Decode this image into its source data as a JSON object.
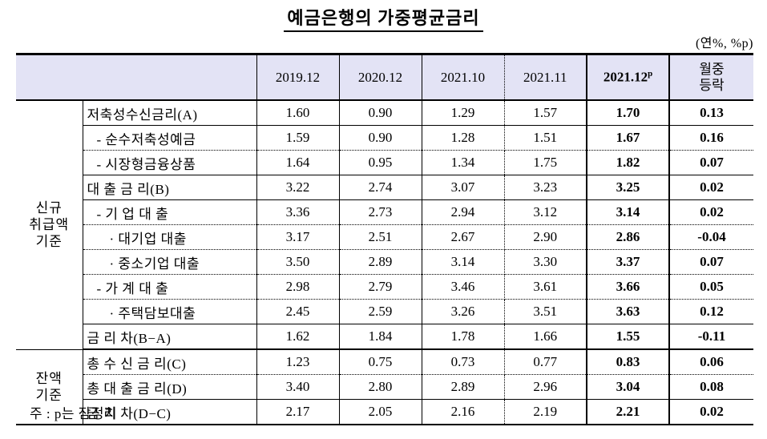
{
  "title": "예금은행의 가중평균금리",
  "unit_note": "(연%, %p)",
  "footnote": "주 : p는 잠정치",
  "colors": {
    "header_bg": "#e3e3f5",
    "border": "#000000",
    "text": "#000000"
  },
  "table": {
    "column_headers": [
      "2019.12",
      "2020.12",
      "2021.10",
      "2021.11"
    ],
    "highlight_header": {
      "label": "2021.12",
      "sup": "p"
    },
    "change_header": "월중\n등락",
    "groups": [
      {
        "label": "신규\n취급액\n기준"
      },
      {
        "label": "잔액\n기준"
      }
    ],
    "rows": [
      {
        "label": "저축성수신금리(A)",
        "values": [
          "1.60",
          "0.90",
          "1.29",
          "1.57",
          "1.70",
          "0.13"
        ]
      },
      {
        "label": "- 순수저축성예금",
        "values": [
          "1.59",
          "0.90",
          "1.28",
          "1.51",
          "1.67",
          "0.16"
        ]
      },
      {
        "label": "- 시장형금융상품",
        "values": [
          "1.64",
          "0.95",
          "1.34",
          "1.75",
          "1.82",
          "0.07"
        ]
      },
      {
        "label": "대 출 금 리(B)",
        "values": [
          "3.22",
          "2.74",
          "3.07",
          "3.23",
          "3.25",
          "0.02"
        ]
      },
      {
        "label": "- 기 업 대 출",
        "values": [
          "3.36",
          "2.73",
          "2.94",
          "3.12",
          "3.14",
          "0.02"
        ]
      },
      {
        "label": "· 대기업 대출",
        "values": [
          "3.17",
          "2.51",
          "2.67",
          "2.90",
          "2.86",
          "-0.04"
        ]
      },
      {
        "label": "· 중소기업 대출",
        "values": [
          "3.50",
          "2.89",
          "3.14",
          "3.30",
          "3.37",
          "0.07"
        ]
      },
      {
        "label": "- 가 계 대 출",
        "values": [
          "2.98",
          "2.79",
          "3.46",
          "3.61",
          "3.66",
          "0.05"
        ]
      },
      {
        "label": "· 주택담보대출",
        "values": [
          "2.45",
          "2.59",
          "3.26",
          "3.51",
          "3.63",
          "0.12"
        ]
      },
      {
        "label": "금 리 차(B−A)",
        "values": [
          "1.62",
          "1.84",
          "1.78",
          "1.66",
          "1.55",
          "-0.11"
        ]
      },
      {
        "label": "총 수 신 금 리(C)",
        "values": [
          "1.23",
          "0.75",
          "0.73",
          "0.77",
          "0.83",
          "0.06"
        ]
      },
      {
        "label": "총 대 출 금 리(D)",
        "values": [
          "3.40",
          "2.80",
          "2.89",
          "2.96",
          "3.04",
          "0.08"
        ]
      },
      {
        "label": "금 리 차(D−C)",
        "values": [
          "2.17",
          "2.05",
          "2.16",
          "2.19",
          "2.21",
          "0.02"
        ]
      }
    ]
  }
}
